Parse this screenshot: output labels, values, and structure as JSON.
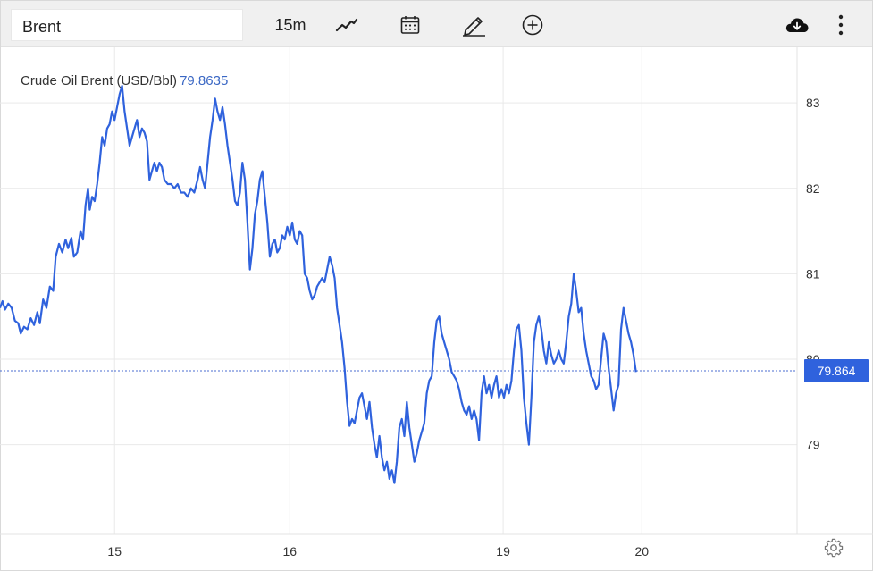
{
  "toolbar": {
    "symbol": "Brent",
    "interval": "15m",
    "icons": [
      "line-chart-icon",
      "calendar-icon",
      "pencil-icon",
      "plus-circle-icon",
      "cloud-download-icon",
      "more-vertical-icon"
    ]
  },
  "legend": {
    "name": "Crude Oil Brent (USD/Bbl)",
    "value": "79.8635"
  },
  "colors": {
    "line": "#2f62dd",
    "price_tag": "#2f62dd",
    "grid": "#e9e9e9",
    "dotted": "#4b6ed1"
  },
  "chart_data": {
    "type": "line",
    "title": "",
    "xlabel": "",
    "ylabel": "",
    "x_ticks": [
      {
        "label": "15",
        "x": 3.38
      },
      {
        "label": "16",
        "x": 5.49
      },
      {
        "label": "19",
        "x": 8.06
      },
      {
        "label": "20",
        "x": 9.73
      }
    ],
    "y_ticks": [
      79,
      80,
      81,
      82,
      83
    ],
    "ylim": [
      77.95,
      83.65
    ],
    "xlim": [
      2.0,
      11.6
    ],
    "grid": true,
    "last_price_label": "79.864",
    "last_price": 79.864,
    "series": [
      {
        "points": [
          [
            2.0,
            80.6
          ],
          [
            2.03,
            80.68
          ],
          [
            2.06,
            80.58
          ],
          [
            2.1,
            80.65
          ],
          [
            2.14,
            80.6
          ],
          [
            2.18,
            80.45
          ],
          [
            2.22,
            80.42
          ],
          [
            2.25,
            80.3
          ],
          [
            2.29,
            80.38
          ],
          [
            2.33,
            80.35
          ],
          [
            2.37,
            80.48
          ],
          [
            2.41,
            80.4
          ],
          [
            2.45,
            80.55
          ],
          [
            2.48,
            80.42
          ],
          [
            2.52,
            80.7
          ],
          [
            2.56,
            80.6
          ],
          [
            2.6,
            80.85
          ],
          [
            2.64,
            80.8
          ],
          [
            2.67,
            81.2
          ],
          [
            2.71,
            81.35
          ],
          [
            2.75,
            81.25
          ],
          [
            2.79,
            81.4
          ],
          [
            2.82,
            81.3
          ],
          [
            2.86,
            81.42
          ],
          [
            2.89,
            81.2
          ],
          [
            2.93,
            81.25
          ],
          [
            2.97,
            81.5
          ],
          [
            3.0,
            81.4
          ],
          [
            3.03,
            81.8
          ],
          [
            3.06,
            82.0
          ],
          [
            3.08,
            81.75
          ],
          [
            3.11,
            81.9
          ],
          [
            3.14,
            81.85
          ],
          [
            3.17,
            82.05
          ],
          [
            3.2,
            82.3
          ],
          [
            3.23,
            82.6
          ],
          [
            3.26,
            82.5
          ],
          [
            3.29,
            82.7
          ],
          [
            3.32,
            82.75
          ],
          [
            3.35,
            82.9
          ],
          [
            3.38,
            82.8
          ],
          [
            3.41,
            82.95
          ],
          [
            3.44,
            83.1
          ],
          [
            3.47,
            83.2
          ],
          [
            3.5,
            82.9
          ],
          [
            3.53,
            82.7
          ],
          [
            3.56,
            82.5
          ],
          [
            3.59,
            82.6
          ],
          [
            3.62,
            82.7
          ],
          [
            3.65,
            82.8
          ],
          [
            3.68,
            82.6
          ],
          [
            3.71,
            82.7
          ],
          [
            3.74,
            82.65
          ],
          [
            3.77,
            82.55
          ],
          [
            3.8,
            82.1
          ],
          [
            3.83,
            82.2
          ],
          [
            3.86,
            82.3
          ],
          [
            3.89,
            82.2
          ],
          [
            3.92,
            82.3
          ],
          [
            3.95,
            82.25
          ],
          [
            3.98,
            82.1
          ],
          [
            4.02,
            82.05
          ],
          [
            4.06,
            82.05
          ],
          [
            4.1,
            82.0
          ],
          [
            4.14,
            82.05
          ],
          [
            4.18,
            81.95
          ],
          [
            4.22,
            81.95
          ],
          [
            4.26,
            81.9
          ],
          [
            4.3,
            82.0
          ],
          [
            4.34,
            81.95
          ],
          [
            4.38,
            82.1
          ],
          [
            4.41,
            82.25
          ],
          [
            4.44,
            82.1
          ],
          [
            4.47,
            82.0
          ],
          [
            4.5,
            82.3
          ],
          [
            4.53,
            82.6
          ],
          [
            4.56,
            82.8
          ],
          [
            4.59,
            83.05
          ],
          [
            4.62,
            82.9
          ],
          [
            4.65,
            82.8
          ],
          [
            4.68,
            82.95
          ],
          [
            4.71,
            82.75
          ],
          [
            4.74,
            82.5
          ],
          [
            4.77,
            82.3
          ],
          [
            4.8,
            82.1
          ],
          [
            4.83,
            81.85
          ],
          [
            4.86,
            81.8
          ],
          [
            4.89,
            81.95
          ],
          [
            4.92,
            82.3
          ],
          [
            4.95,
            82.1
          ],
          [
            4.98,
            81.6
          ],
          [
            5.01,
            81.05
          ],
          [
            5.04,
            81.3
          ],
          [
            5.07,
            81.7
          ],
          [
            5.1,
            81.85
          ],
          [
            5.13,
            82.1
          ],
          [
            5.16,
            82.2
          ],
          [
            5.19,
            81.9
          ],
          [
            5.22,
            81.6
          ],
          [
            5.25,
            81.2
          ],
          [
            5.28,
            81.35
          ],
          [
            5.31,
            81.4
          ],
          [
            5.34,
            81.25
          ],
          [
            5.37,
            81.3
          ],
          [
            5.4,
            81.45
          ],
          [
            5.43,
            81.4
          ],
          [
            5.46,
            81.55
          ],
          [
            5.49,
            81.45
          ],
          [
            5.52,
            81.6
          ],
          [
            5.55,
            81.4
          ],
          [
            5.58,
            81.35
          ],
          [
            5.61,
            81.5
          ],
          [
            5.64,
            81.45
          ],
          [
            5.67,
            81.0
          ],
          [
            5.7,
            80.95
          ],
          [
            5.73,
            80.8
          ],
          [
            5.76,
            80.7
          ],
          [
            5.79,
            80.75
          ],
          [
            5.82,
            80.85
          ],
          [
            5.85,
            80.9
          ],
          [
            5.88,
            80.95
          ],
          [
            5.91,
            80.9
          ],
          [
            5.94,
            81.05
          ],
          [
            5.97,
            81.2
          ],
          [
            6.0,
            81.1
          ],
          [
            6.03,
            80.95
          ],
          [
            6.06,
            80.6
          ],
          [
            6.09,
            80.4
          ],
          [
            6.12,
            80.2
          ],
          [
            6.15,
            79.9
          ],
          [
            6.18,
            79.5
          ],
          [
            6.21,
            79.22
          ],
          [
            6.24,
            79.3
          ],
          [
            6.27,
            79.25
          ],
          [
            6.3,
            79.4
          ],
          [
            6.33,
            79.55
          ],
          [
            6.36,
            79.6
          ],
          [
            6.39,
            79.45
          ],
          [
            6.42,
            79.3
          ],
          [
            6.45,
            79.5
          ],
          [
            6.48,
            79.2
          ],
          [
            6.51,
            79.0
          ],
          [
            6.54,
            78.85
          ],
          [
            6.57,
            79.1
          ],
          [
            6.6,
            78.85
          ],
          [
            6.63,
            78.7
          ],
          [
            6.66,
            78.8
          ],
          [
            6.69,
            78.6
          ],
          [
            6.72,
            78.7
          ],
          [
            6.75,
            78.55
          ],
          [
            6.78,
            78.8
          ],
          [
            6.81,
            79.2
          ],
          [
            6.84,
            79.3
          ],
          [
            6.87,
            79.1
          ],
          [
            6.9,
            79.5
          ],
          [
            6.93,
            79.2
          ],
          [
            6.96,
            79.0
          ],
          [
            6.99,
            78.8
          ],
          [
            7.02,
            78.9
          ],
          [
            7.05,
            79.05
          ],
          [
            7.08,
            79.15
          ],
          [
            7.11,
            79.25
          ],
          [
            7.14,
            79.6
          ],
          [
            7.17,
            79.75
          ],
          [
            7.2,
            79.8
          ],
          [
            7.23,
            80.2
          ],
          [
            7.26,
            80.45
          ],
          [
            7.29,
            80.5
          ],
          [
            7.32,
            80.3
          ],
          [
            7.35,
            80.2
          ],
          [
            7.38,
            80.1
          ],
          [
            7.41,
            80.0
          ],
          [
            7.44,
            79.85
          ],
          [
            7.47,
            79.8
          ],
          [
            7.5,
            79.75
          ],
          [
            7.53,
            79.65
          ],
          [
            7.56,
            79.5
          ],
          [
            7.59,
            79.4
          ],
          [
            7.62,
            79.35
          ],
          [
            7.65,
            79.45
          ],
          [
            7.68,
            79.3
          ],
          [
            7.71,
            79.4
          ],
          [
            7.74,
            79.3
          ],
          [
            7.77,
            79.05
          ],
          [
            7.8,
            79.6
          ],
          [
            7.83,
            79.8
          ],
          [
            7.86,
            79.6
          ],
          [
            7.89,
            79.7
          ],
          [
            7.92,
            79.55
          ],
          [
            7.95,
            79.7
          ],
          [
            7.98,
            79.8
          ],
          [
            8.01,
            79.55
          ],
          [
            8.04,
            79.65
          ],
          [
            8.07,
            79.55
          ],
          [
            8.1,
            79.7
          ],
          [
            8.13,
            79.6
          ],
          [
            8.16,
            79.75
          ],
          [
            8.19,
            80.1
          ],
          [
            8.22,
            80.35
          ],
          [
            8.25,
            80.4
          ],
          [
            8.28,
            80.1
          ],
          [
            8.31,
            79.55
          ],
          [
            8.34,
            79.25
          ],
          [
            8.37,
            79.0
          ],
          [
            8.4,
            79.55
          ],
          [
            8.43,
            80.2
          ],
          [
            8.46,
            80.4
          ],
          [
            8.49,
            80.5
          ],
          [
            8.52,
            80.35
          ],
          [
            8.55,
            80.1
          ],
          [
            8.58,
            79.95
          ],
          [
            8.61,
            80.2
          ],
          [
            8.64,
            80.05
          ],
          [
            8.67,
            79.95
          ],
          [
            8.7,
            80.0
          ],
          [
            8.73,
            80.1
          ],
          [
            8.76,
            80.0
          ],
          [
            8.79,
            79.95
          ],
          [
            8.82,
            80.2
          ],
          [
            8.85,
            80.5
          ],
          [
            8.88,
            80.65
          ],
          [
            8.91,
            81.0
          ],
          [
            8.94,
            80.8
          ],
          [
            8.97,
            80.55
          ],
          [
            9.0,
            80.6
          ],
          [
            9.03,
            80.3
          ],
          [
            9.06,
            80.1
          ],
          [
            9.09,
            79.95
          ],
          [
            9.12,
            79.8
          ],
          [
            9.15,
            79.75
          ],
          [
            9.18,
            79.65
          ],
          [
            9.21,
            79.7
          ],
          [
            9.24,
            80.0
          ],
          [
            9.27,
            80.3
          ],
          [
            9.3,
            80.2
          ],
          [
            9.33,
            79.9
          ],
          [
            9.36,
            79.65
          ],
          [
            9.39,
            79.4
          ],
          [
            9.42,
            79.6
          ],
          [
            9.45,
            79.7
          ],
          [
            9.48,
            80.35
          ],
          [
            9.51,
            80.6
          ],
          [
            9.54,
            80.45
          ],
          [
            9.57,
            80.3
          ],
          [
            9.6,
            80.2
          ],
          [
            9.63,
            80.05
          ],
          [
            9.66,
            79.85
          ]
        ]
      }
    ]
  },
  "settings": {
    "icon": "gear-icon"
  }
}
